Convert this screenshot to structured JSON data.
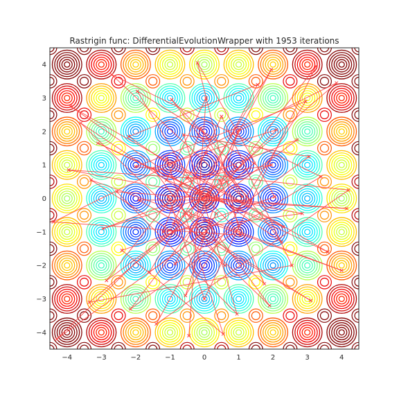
{
  "chart_data": {
    "type": "line",
    "title": "Rastrigin func: DifferentialEvolutionWrapper with 1953 iterations",
    "xlabel": "",
    "ylabel": "",
    "xlim": [
      -4.5,
      4.5
    ],
    "ylim": [
      -4.5,
      4.5
    ],
    "x_ticks": [
      -4,
      -3,
      -2,
      -1,
      0,
      1,
      2,
      3,
      4
    ],
    "y_ticks": [
      -4,
      -3,
      -2,
      -1,
      0,
      1,
      2,
      3,
      4
    ],
    "x_tick_labels": [
      "−4",
      "−3",
      "−2",
      "−1",
      "0",
      "1",
      "2",
      "3",
      "4"
    ],
    "y_tick_labels": [
      "−4",
      "−3",
      "−2",
      "−1",
      "0",
      "1",
      "2",
      "3",
      "4"
    ],
    "grid": false,
    "background": "contour",
    "contour_function": "rastrigin",
    "contour_colormap": "jet",
    "path_color": "#ff4040",
    "series": [
      {
        "values": [
          [
            -0.45,
            -4.1
          ],
          [
            0.05,
            3.0
          ],
          [
            -1.1,
            0.55
          ],
          [
            2.3,
            -0.85
          ],
          [
            -3.9,
            2.75
          ],
          [
            0.0,
            0.0
          ],
          [
            1.95,
            3.85
          ],
          [
            -1.6,
            -2.2
          ],
          [
            3.05,
            1.25
          ],
          [
            -0.6,
            1.9
          ],
          [
            0.95,
            -3.45
          ],
          [
            -2.55,
            0.2
          ],
          [
            4.15,
            -0.3
          ],
          [
            -0.05,
            -0.05
          ],
          [
            -1.95,
            3.2
          ],
          [
            1.45,
            1.05
          ],
          [
            -3.35,
            -3.1
          ],
          [
            2.55,
            -2.0
          ],
          [
            0.5,
            2.45
          ],
          [
            -0.9,
            -0.75
          ],
          [
            3.85,
            3.45
          ],
          [
            -4.4,
            -0.7
          ],
          [
            1.05,
            -1.1
          ],
          [
            -0.2,
            4.05
          ],
          [
            2.05,
            0.05
          ],
          [
            -2.4,
            -1.55
          ],
          [
            0.55,
            -4.05
          ],
          [
            -1.1,
            1.2
          ],
          [
            3.6,
            -1.6
          ],
          [
            -3.1,
            1.65
          ],
          [
            0.15,
            0.1
          ],
          [
            1.0,
            2.05
          ],
          [
            -0.55,
            -2.9
          ],
          [
            2.95,
            2.9
          ],
          [
            -2.0,
            0.95
          ],
          [
            4.2,
            0.25
          ],
          [
            -1.4,
            -3.75
          ],
          [
            0.35,
            -0.45
          ],
          [
            -3.6,
            2.25
          ],
          [
            1.9,
            -3.2
          ],
          [
            -0.7,
            0.4
          ],
          [
            2.7,
            1.75
          ],
          [
            -2.85,
            -2.45
          ],
          [
            0.05,
            1.35
          ],
          [
            1.35,
            -0.05
          ],
          [
            -1.9,
            -0.05
          ],
          [
            3.1,
            -3.05
          ],
          [
            -0.05,
            -1.05
          ],
          [
            -4.3,
            -4.2
          ],
          [
            0.9,
            0.95
          ],
          [
            -0.95,
            2.95
          ],
          [
            2.25,
            -1.3
          ],
          [
            -2.2,
            1.85
          ],
          [
            1.55,
            3.4
          ],
          [
            -0.4,
            -0.45
          ],
          [
            4.0,
            -2.15
          ],
          [
            -3.3,
            0.55
          ],
          [
            0.6,
            -2.0
          ],
          [
            -1.5,
            0.9
          ],
          [
            2.1,
            2.05
          ],
          [
            0.05,
            -0.1
          ],
          [
            -0.85,
            -1.95
          ],
          [
            3.4,
            0.65
          ],
          [
            -2.7,
            3.7
          ],
          [
            1.1,
            0.05
          ],
          [
            -0.1,
            2.1
          ],
          [
            -1.2,
            -1.0
          ],
          [
            2.85,
            -0.45
          ],
          [
            -3.95,
            0.85
          ],
          [
            0.45,
            0.55
          ],
          [
            1.75,
            -2.55
          ],
          [
            -1.05,
            0.05
          ],
          [
            0.0,
            -3.0
          ],
          [
            3.25,
            3.95
          ],
          [
            -2.15,
            -3.3
          ],
          [
            0.95,
            -0.95
          ],
          [
            -0.5,
            0.6
          ],
          [
            1.95,
            1.0
          ],
          [
            -2.95,
            -0.9
          ],
          [
            0.1,
            0.05
          ]
        ]
      }
    ]
  }
}
